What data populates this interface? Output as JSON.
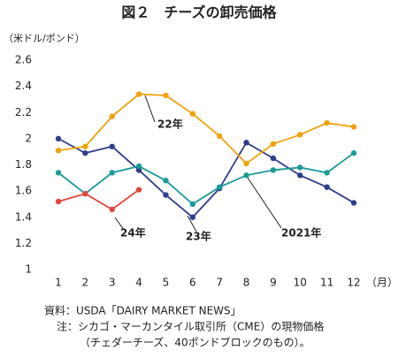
{
  "chart_data": {
    "type": "line",
    "title": "図２　チーズの卸売価格",
    "y_label": "（米ドル/ポンド）",
    "x_label": "（月）",
    "categories": [
      "1",
      "2",
      "3",
      "4",
      "5",
      "6",
      "7",
      "8",
      "9",
      "10",
      "11",
      "12"
    ],
    "series": [
      {
        "name": "2021年",
        "color": "#2f3d8c",
        "values": [
          2.0,
          1.89,
          1.94,
          1.76,
          1.57,
          1.4,
          1.62,
          1.97,
          1.85,
          1.72,
          1.63,
          1.51
        ]
      },
      {
        "name": "22年",
        "color": "#f0a20c",
        "values": [
          1.91,
          1.94,
          2.17,
          2.34,
          2.33,
          2.19,
          2.02,
          1.81,
          1.96,
          2.03,
          2.12,
          2.09
        ]
      },
      {
        "name": "23年",
        "color": "#1c9a98",
        "values": [
          1.74,
          1.58,
          1.74,
          1.79,
          1.68,
          1.5,
          1.63,
          1.72,
          1.76,
          1.78,
          1.74,
          1.89
        ]
      },
      {
        "name": "24年",
        "color": "#e0473c",
        "values": [
          1.52,
          1.58,
          1.46,
          1.61,
          null,
          null,
          null,
          null,
          null,
          null,
          null,
          null
        ]
      }
    ],
    "ylim": [
      1,
      2.6
    ],
    "yticks": [
      1,
      1.2,
      1.4,
      1.6,
      1.8,
      2,
      2.2,
      2.4,
      2.6
    ],
    "grid": false,
    "notes": [
      "資料：USDA「DAIRY MARKET NEWS」",
      "注：シカゴ・マーカンタイル取引所（CME）の現物価格",
      "（チェダーチーズ、40ポンドブロックのもの）。"
    ]
  }
}
